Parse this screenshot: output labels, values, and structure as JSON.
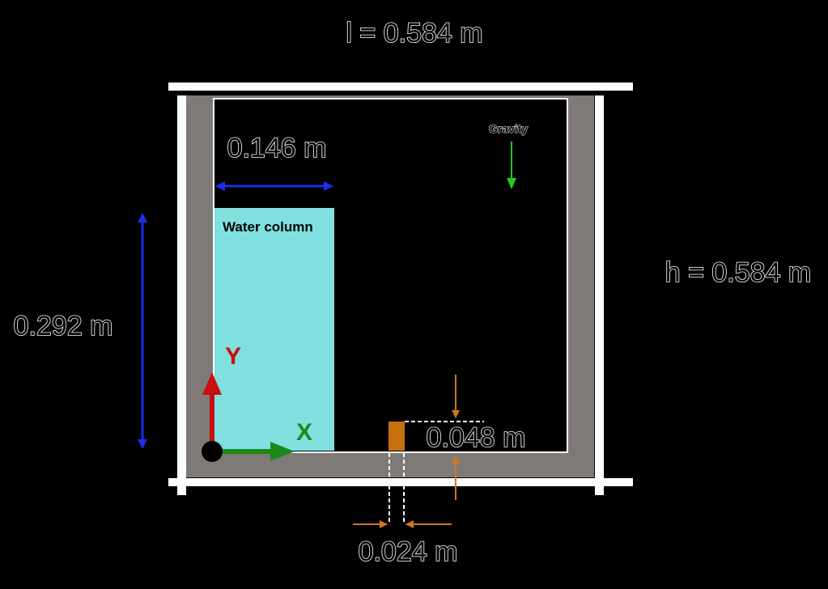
{
  "dimensions": {
    "length": "l = 0.584 m",
    "height": "h = 0.584 m",
    "water_width": "0.146 m",
    "water_height": "0.292 m",
    "obstacle_height": "0.048 m",
    "obstacle_width": "0.024 m"
  },
  "labels": {
    "water_column": "Water column",
    "gravity": "Gravity",
    "x_axis": "X",
    "y_axis": "Y"
  },
  "colors": {
    "background": "#000000",
    "wall": "#7f7a78",
    "water": "#80e0e0",
    "obstacle": "#c87010",
    "x_axis": "#1a8a1a",
    "y_axis": "#c81010",
    "gravity_arrow": "#22c822",
    "blue_dimension": "#1a2ee8",
    "orange_dimension": "#d07820"
  }
}
